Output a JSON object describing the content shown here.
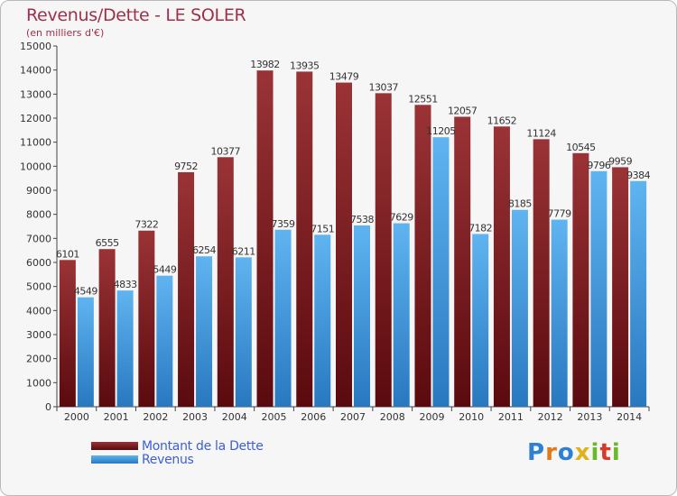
{
  "header": {
    "title": "Revenus/Dette - LE SOLER",
    "subtitle": "(en milliers d'€)"
  },
  "legend": {
    "items": [
      {
        "label": "Montant de la Dette",
        "color": "#7a1a1e"
      },
      {
        "label": "Revenus",
        "color": "#3f9ae0"
      }
    ]
  },
  "logo": {
    "text": "Proxiti",
    "letters": [
      "P",
      "r",
      "o",
      "x",
      "i",
      "t",
      "i"
    ],
    "colors": [
      "#2f7fd4",
      "#e07a1a",
      "#2f7fd4",
      "#e0b21a",
      "#6bb82a",
      "#d83a2a",
      "#6bb82a"
    ]
  },
  "chart_data": {
    "type": "bar",
    "title": "Revenus/Dette - LE SOLER",
    "subtitle": "(en milliers d'€)",
    "categories": [
      "2000",
      "2001",
      "2002",
      "2003",
      "2004",
      "2005",
      "2006",
      "2007",
      "2008",
      "2009",
      "2010",
      "2011",
      "2012",
      "2013",
      "2014"
    ],
    "series": [
      {
        "name": "Montant de la Dette",
        "color": "#7a1a1e",
        "values": [
          6101,
          6555,
          7322,
          9752,
          10377,
          13982,
          13935,
          13479,
          13037,
          12551,
          12057,
          11652,
          11124,
          10545,
          9959
        ]
      },
      {
        "name": "Revenus",
        "color": "#3f9ae0",
        "values": [
          4549,
          4833,
          5449,
          6254,
          6211,
          7359,
          7151,
          7538,
          7629,
          11205,
          7182,
          8185,
          7779,
          9796,
          9384
        ]
      }
    ],
    "ylim": [
      0,
      15000
    ],
    "yticks": [
      0,
      1000,
      2000,
      3000,
      4000,
      5000,
      6000,
      7000,
      8000,
      9000,
      10000,
      11000,
      12000,
      13000,
      14000,
      15000
    ],
    "grid": false,
    "legend_position": "bottom-left"
  }
}
